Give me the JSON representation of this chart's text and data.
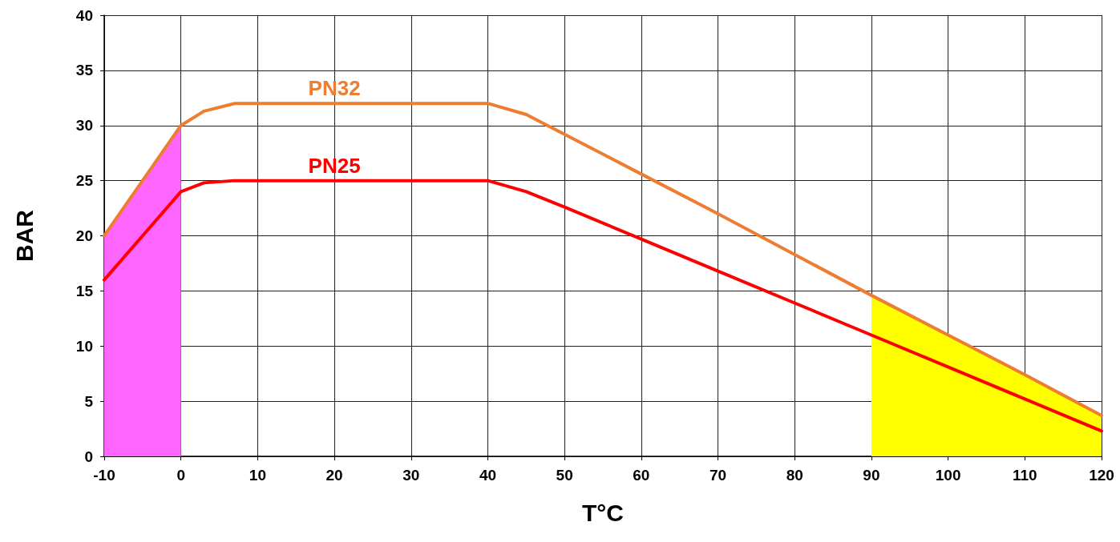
{
  "chart_data": {
    "type": "line",
    "xlabel": "T°C",
    "ylabel": "BAR",
    "xlim": [
      -10,
      120
    ],
    "xticks": [
      -10,
      0,
      10,
      20,
      30,
      40,
      50,
      60,
      70,
      80,
      90,
      100,
      110,
      120
    ],
    "ylim": [
      0,
      40
    ],
    "yticks": [
      0,
      5,
      10,
      15,
      20,
      25,
      30,
      35,
      40
    ],
    "grid": true,
    "legend": false,
    "marker": "none",
    "line_style": "solid",
    "series": [
      {
        "type": "area",
        "color": "#ff66ff",
        "x": [
          -10,
          -5,
          0
        ],
        "values": [
          20,
          25,
          30
        ]
      },
      {
        "type": "area",
        "color": "#ffff00",
        "x": [
          90,
          100,
          110,
          120
        ],
        "values": [
          14.6,
          11,
          7.4,
          3.7
        ]
      },
      {
        "name": "PN32",
        "color": "#ed7d31",
        "x": [
          -10,
          -5,
          0,
          3,
          7,
          10,
          20,
          30,
          35,
          40,
          45,
          50,
          60,
          70,
          80,
          90,
          100,
          110,
          120
        ],
        "values": [
          20,
          25,
          30,
          31.3,
          32,
          32,
          32,
          32,
          32,
          32,
          31,
          29.2,
          25.6,
          22,
          18.3,
          14.6,
          11,
          7.4,
          3.7
        ]
      },
      {
        "name": "PN25",
        "color": "#ff0000",
        "x": [
          -10,
          -5,
          0,
          3,
          7,
          10,
          20,
          30,
          35,
          40,
          45,
          50,
          60,
          70,
          80,
          90,
          100,
          110,
          120
        ],
        "values": [
          16,
          20,
          24,
          24.8,
          25,
          25,
          25,
          25,
          25,
          25,
          24,
          22.6,
          19.7,
          16.8,
          13.9,
          11,
          8.1,
          5.2,
          2.3
        ]
      }
    ]
  }
}
